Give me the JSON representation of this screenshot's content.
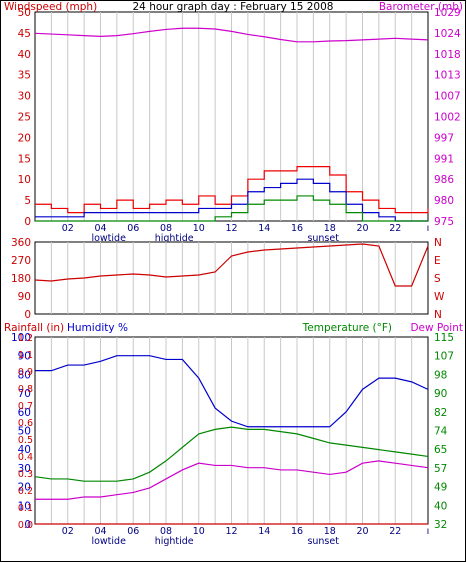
{
  "chart_data": [
    {
      "type": "line",
      "title": "24 hour graph day : February 15 2008",
      "ylabel_left": "Windspeed (mph)",
      "ylabel_right": "Barometer (mb)",
      "x_tick_labels": [
        "02",
        "04",
        "06",
        "08",
        "10",
        "12",
        "14",
        "16",
        "18",
        "20",
        "22",
        "ı"
      ],
      "x_annotations": [
        {
          "label": "lowtide",
          "hour": 4.5
        },
        {
          "label": "hightide",
          "hour": 8.5
        },
        {
          "label": "sunset",
          "hour": 17.6
        }
      ],
      "y_left_ticks": [
        "0",
        "5",
        "10",
        "15",
        "20",
        "25",
        "30",
        "35",
        "40",
        "45",
        "50"
      ],
      "y_left_range": [
        0,
        50
      ],
      "y_right_ticks": [
        "975",
        "980",
        "986",
        "991",
        "997",
        "1002",
        "1007",
        "1013",
        "1018",
        "1024",
        "1029"
      ],
      "y_right_range": [
        975,
        1029
      ],
      "grid": "vertical",
      "series": [
        {
          "name": "Barometer (mb)",
          "axis": "right",
          "color": "#cc00cc",
          "x": [
            0,
            1,
            2,
            3,
            4,
            5,
            6,
            7,
            8,
            9,
            10,
            11,
            12,
            13,
            14,
            15,
            16,
            17,
            18,
            19,
            20,
            21,
            22,
            23,
            24
          ],
          "y": [
            1023.5,
            1023.3,
            1023.1,
            1022.9,
            1022.7,
            1022.9,
            1023.4,
            1024.0,
            1024.5,
            1024.8,
            1024.8,
            1024.6,
            1024.0,
            1023.2,
            1022.6,
            1021.9,
            1021.3,
            1021.3,
            1021.5,
            1021.6,
            1021.8,
            1022.0,
            1022.2,
            1022.0,
            1021.8
          ]
        },
        {
          "name": "Windspeed gust",
          "axis": "left",
          "color": "#ee0000",
          "x": [
            0,
            1,
            2,
            3,
            4,
            5,
            6,
            7,
            8,
            9,
            10,
            11,
            12,
            13,
            14,
            15,
            16,
            17,
            18,
            19,
            20,
            21,
            22,
            23,
            24
          ],
          "y": [
            4,
            3,
            2,
            4,
            3,
            5,
            3,
            4,
            5,
            4,
            6,
            4,
            6,
            10,
            12,
            12,
            13,
            13,
            11,
            7,
            5,
            3,
            2,
            2,
            3
          ]
        },
        {
          "name": "Windspeed average",
          "axis": "left",
          "color": "#0000cc",
          "x": [
            0,
            1,
            2,
            3,
            4,
            5,
            6,
            7,
            8,
            9,
            10,
            11,
            12,
            13,
            14,
            15,
            16,
            17,
            18,
            19,
            20,
            21,
            22,
            23,
            24
          ],
          "y": [
            1,
            1,
            1,
            2,
            2,
            2,
            2,
            2,
            2,
            2,
            3,
            3,
            4,
            7,
            8,
            9,
            10,
            9,
            7,
            4,
            2,
            1,
            0,
            0,
            0
          ]
        },
        {
          "name": "Windspeed low",
          "axis": "left",
          "color": "#008800",
          "x": [
            0,
            1,
            2,
            3,
            4,
            5,
            6,
            7,
            8,
            9,
            10,
            11,
            12,
            13,
            14,
            15,
            16,
            17,
            18,
            19,
            20,
            21,
            22,
            23,
            24
          ],
          "y": [
            0,
            0,
            0,
            0,
            0,
            0,
            0,
            0,
            0,
            0,
            0,
            1,
            2,
            4,
            5,
            5,
            6,
            5,
            4,
            2,
            0,
            0,
            0,
            0,
            0
          ]
        }
      ]
    },
    {
      "type": "line",
      "ylabel_left": "",
      "ylabel_right": "",
      "y_left_ticks": [
        "0",
        "90",
        "180",
        "270",
        "360"
      ],
      "y_left_range": [
        0,
        360
      ],
      "y_right_ticks": [
        "N",
        "W",
        "S",
        "E",
        "N"
      ],
      "x_tick_labels": [],
      "grid": "vertical",
      "series": [
        {
          "name": "Wind direction",
          "axis": "left",
          "color": "#cc0000",
          "x": [
            0,
            1,
            2,
            3,
            4,
            5,
            6,
            7,
            8,
            9,
            10,
            11,
            12,
            13,
            14,
            15,
            16,
            17,
            18,
            19,
            20,
            21,
            22,
            23,
            24
          ],
          "y": [
            170,
            165,
            175,
            180,
            190,
            195,
            200,
            195,
            185,
            190,
            195,
            210,
            290,
            310,
            320,
            325,
            330,
            335,
            340,
            345,
            350,
            340,
            140,
            140,
            340
          ]
        }
      ]
    },
    {
      "type": "line",
      "ylabel_left": "Rainfall (in)",
      "ylabel_left2": "Humidity %",
      "ylabel_right": "Temperature (°F)",
      "ylabel_right2": "Dew Point",
      "x_tick_labels": [
        "02",
        "04",
        "06",
        "08",
        "10",
        "12",
        "14",
        "16",
        "18",
        "20",
        "22",
        "ı"
      ],
      "x_annotations": [
        {
          "label": "lowtide",
          "hour": 4.5
        },
        {
          "label": "hightide",
          "hour": 8.5
        },
        {
          "label": "sunset",
          "hour": 17.6
        }
      ],
      "y_left_ticks_humidity": [
        "0",
        "10",
        "20",
        "30",
        "40",
        "50",
        "60",
        "70",
        "80",
        "90",
        "100"
      ],
      "y_left_ticks_rain": [
        "0.0",
        "0.1",
        "0.2",
        "0.3",
        "0.4",
        "0.5",
        "0.6",
        "0.7",
        "0.8",
        "0.9",
        "1.1",
        "1.2"
      ],
      "y_right_ticks": [
        "32",
        "40",
        "49",
        "57",
        "65",
        "74",
        "82",
        "90",
        "98",
        "107",
        "115"
      ],
      "y_left_range": [
        0,
        100
      ],
      "y_right_range": [
        32,
        115
      ],
      "grid": "vertical",
      "series": [
        {
          "name": "Humidity %",
          "axis": "left",
          "color": "#0000cc",
          "x": [
            0,
            1,
            2,
            3,
            4,
            5,
            6,
            7,
            8,
            9,
            10,
            11,
            12,
            13,
            14,
            15,
            16,
            17,
            18,
            19,
            20,
            21,
            22,
            23,
            24
          ],
          "y": [
            82,
            82,
            85,
            85,
            87,
            90,
            90,
            90,
            88,
            88,
            78,
            62,
            55,
            52,
            52,
            52,
            52,
            52,
            52,
            60,
            72,
            78,
            78,
            76,
            72
          ]
        },
        {
          "name": "Temperature (°F)",
          "axis": "right",
          "color": "#008800",
          "x": [
            0,
            1,
            2,
            3,
            4,
            5,
            6,
            7,
            8,
            9,
            10,
            11,
            12,
            13,
            14,
            15,
            16,
            17,
            18,
            19,
            20,
            21,
            22,
            23,
            24
          ],
          "y": [
            53,
            52,
            52,
            51,
            51,
            51,
            52,
            55,
            60,
            66,
            72,
            74,
            75,
            74,
            74,
            73,
            72,
            70,
            68,
            67,
            66,
            65,
            64,
            63,
            62
          ]
        },
        {
          "name": "Dew Point",
          "axis": "right",
          "color": "#cc00cc",
          "x": [
            0,
            1,
            2,
            3,
            4,
            5,
            6,
            7,
            8,
            9,
            10,
            11,
            12,
            13,
            14,
            15,
            16,
            17,
            18,
            19,
            20,
            21,
            22,
            23,
            24
          ],
          "y": [
            43,
            43,
            43,
            44,
            44,
            45,
            46,
            48,
            52,
            56,
            59,
            58,
            58,
            57,
            57,
            56,
            56,
            55,
            54,
            55,
            59,
            60,
            59,
            58,
            57
          ]
        },
        {
          "name": "Rainfall (in)",
          "axis": "left",
          "color": "#cc0000",
          "x": [
            0,
            24
          ],
          "y": [
            0,
            0
          ]
        }
      ]
    }
  ]
}
